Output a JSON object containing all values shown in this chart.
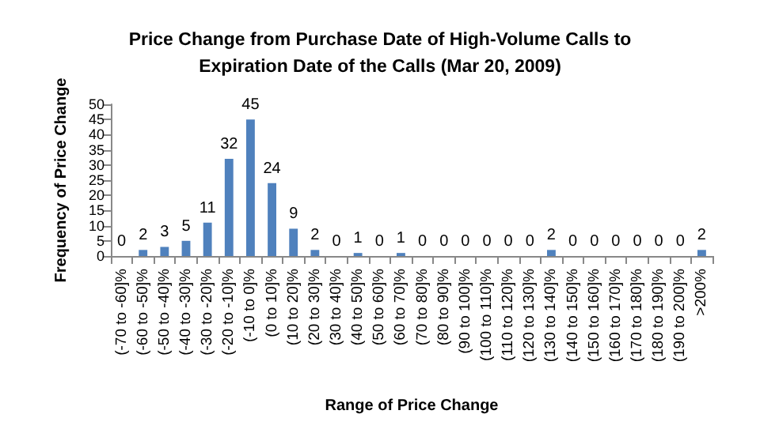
{
  "chart_data": {
    "type": "bar",
    "title": "Price Change from Purchase Date of High-Volume Calls to\nExpiration Date of the Calls (Mar 20, 2009)",
    "xlabel": "Range of Price Change",
    "ylabel": "Frequency of Price Change",
    "categories": [
      "(-70 to -60]%",
      "(-60 to -50]%",
      "(-50 to -40]%",
      "(-40 to -30]%",
      "(-30 to -20]%",
      "(-20 to -10]%",
      "(-10 to 0]%",
      "(0 to 10]%",
      "(10 to 20]%",
      "(20 to 30]%",
      "(30 to 40]%",
      "(40 to 50]%",
      "(50 to 60]%",
      "(60 to 70]%",
      "(70 to 80]%",
      "(80 to 90]%",
      "(90 to 100]%",
      "(100 to 110]%",
      "(110 to 120]%",
      "(120 to 130]%",
      "(130 to 140]%",
      "(140 to 150]%",
      "(150 to 160]%",
      "(160 to 170]%",
      "(170 to 180]%",
      "(180 to 190]%",
      "(190 to 200]%",
      ">200%"
    ],
    "values": [
      0,
      2,
      3,
      5,
      11,
      32,
      45,
      24,
      9,
      2,
      0,
      1,
      0,
      1,
      0,
      0,
      0,
      0,
      0,
      0,
      2,
      0,
      0,
      0,
      0,
      0,
      0,
      2
    ],
    "color": "#4f81bd",
    "ylim": [
      0,
      50
    ],
    "yticks": [
      0,
      5,
      10,
      15,
      20,
      25,
      30,
      35,
      40,
      45,
      50
    ],
    "data_labels": true,
    "grid": false
  }
}
